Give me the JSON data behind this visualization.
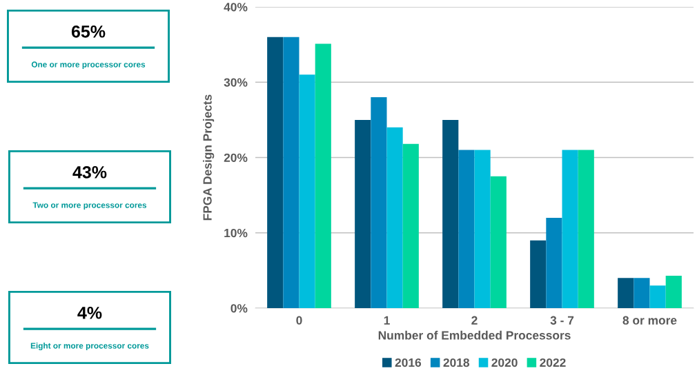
{
  "chart_data": [
    {
      "type": "other",
      "title": "65%",
      "subtitle": "One or more processor cores",
      "color": "#009999"
    },
    {
      "type": "other",
      "title": "43%",
      "subtitle": "Two or more processor cores",
      "color": "#009999"
    },
    {
      "type": "other",
      "title": "4%",
      "subtitle": "Eight or more processor cores",
      "color": "#009999"
    },
    {
      "type": "bar",
      "xlabel": "Number of Embedded Processors",
      "ylabel": "FPGA Design Projects",
      "categories": [
        "0",
        "1",
        "2",
        "3 - 7",
        "8 or more"
      ],
      "series": [
        {
          "name": "2016",
          "color": "#00567d",
          "values": [
            36,
            25,
            25,
            9,
            4
          ]
        },
        {
          "name": "2018",
          "color": "#0086be",
          "values": [
            36,
            28,
            21,
            12,
            4
          ]
        },
        {
          "name": "2020",
          "color": "#00bedd",
          "values": [
            31,
            24,
            21,
            21,
            3
          ]
        },
        {
          "name": "2022",
          "color": "#00d69e",
          "values": [
            35.1,
            21.8,
            17.5,
            21,
            4.3
          ]
        }
      ],
      "ylim": [
        0,
        40
      ],
      "yticks": [
        {
          "value": 0,
          "label": "0%"
        },
        {
          "value": 10,
          "label": "10%"
        },
        {
          "value": 20,
          "label": "20%"
        },
        {
          "value": 30,
          "label": "30%"
        },
        {
          "value": 40,
          "label": "40%"
        }
      ],
      "grid": "y",
      "legend": "bottom"
    }
  ]
}
